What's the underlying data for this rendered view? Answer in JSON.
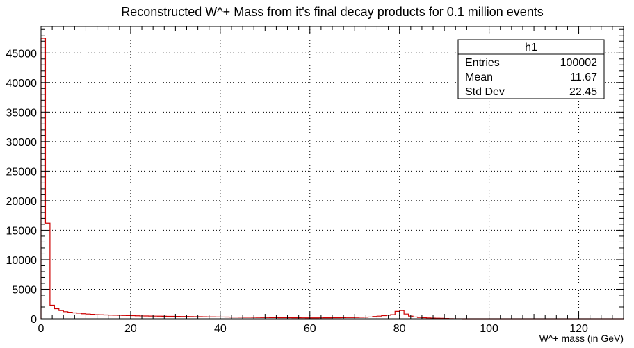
{
  "chart_data": {
    "type": "bar",
    "title": "Reconstructed W^+ Mass from it's final decay products for 0.1 million events",
    "xlabel": "W^+ mass (in GeV)",
    "ylabel": "",
    "xlim": [
      0,
      130
    ],
    "ylim": [
      0,
      49500
    ],
    "x_ticks": [
      0,
      20,
      40,
      60,
      80,
      100,
      120
    ],
    "y_ticks": [
      0,
      5000,
      10000,
      15000,
      20000,
      25000,
      30000,
      35000,
      40000,
      45000
    ],
    "grid": true,
    "series_color": "#cc0000",
    "bin_width": 1,
    "bin_start": 0,
    "values": [
      47500,
      16200,
      2300,
      1700,
      1400,
      1200,
      1100,
      1000,
      950,
      850,
      800,
      750,
      700,
      680,
      650,
      620,
      600,
      580,
      560,
      540,
      520,
      500,
      480,
      470,
      460,
      450,
      440,
      430,
      420,
      410,
      400,
      390,
      380,
      370,
      360,
      350,
      340,
      330,
      320,
      310,
      300,
      290,
      280,
      270,
      260,
      250,
      240,
      230,
      220,
      210,
      200,
      190,
      185,
      180,
      175,
      170,
      165,
      160,
      155,
      150,
      150,
      150,
      155,
      160,
      165,
      170,
      180,
      190,
      200,
      210,
      220,
      240,
      260,
      300,
      380,
      450,
      520,
      600,
      700,
      1250,
      1400,
      800,
      450,
      300,
      220,
      170,
      140,
      110,
      90,
      70,
      50,
      20,
      10,
      5,
      3,
      2,
      1,
      1,
      1,
      0,
      0,
      0,
      0,
      0,
      0,
      0,
      0,
      0,
      0,
      0,
      0,
      0,
      0,
      0,
      0,
      0,
      0,
      0,
      0,
      0,
      0,
      0,
      0,
      0,
      0,
      0,
      0,
      0,
      0,
      0
    ],
    "stats_box": {
      "name": "h1",
      "rows": [
        {
          "label": "Entries",
          "value": "100002"
        },
        {
          "label": "Mean",
          "value": "11.67"
        },
        {
          "label": "Std Dev",
          "value": "22.45"
        }
      ]
    }
  }
}
